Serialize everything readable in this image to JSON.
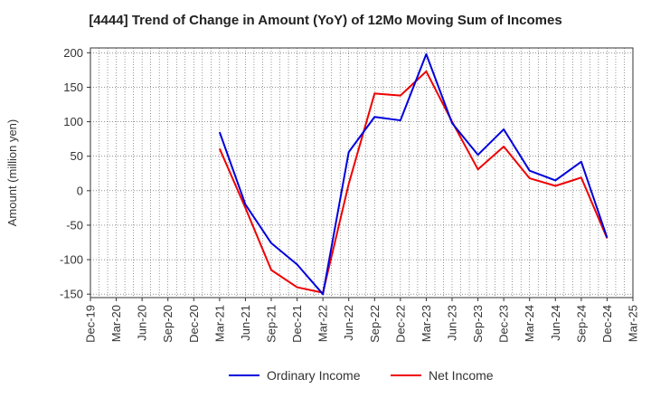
{
  "chart_data": {
    "type": "line",
    "title": "[4444]  Trend of Change in Amount (YoY) of 12Mo Moving Sum of Incomes",
    "xlabel": "",
    "ylabel": "Amount (million yen)",
    "ylim": [
      -155,
      207
    ],
    "yticks": [
      200,
      150,
      100,
      50,
      0,
      -50,
      -100,
      -150
    ],
    "ytick_labels": [
      "200",
      "150",
      "100",
      "50",
      "0",
      "-50",
      "-100",
      "-150"
    ],
    "categories": [
      "Dec-19",
      "Mar-20",
      "Jun-20",
      "Sep-20",
      "Dec-20",
      "Mar-21",
      "Jun-21",
      "Sep-21",
      "Dec-21",
      "Mar-22",
      "Jun-22",
      "Sep-22",
      "Dec-22",
      "Mar-23",
      "Jun-23",
      "Sep-23",
      "Dec-23",
      "Mar-24",
      "Jun-24",
      "Sep-24",
      "Dec-24",
      "Mar-25"
    ],
    "grid": true,
    "legend": "bottom-center",
    "series": [
      {
        "name": "Ordinary Income",
        "color": "#0000dd",
        "values": [
          null,
          null,
          null,
          null,
          null,
          85,
          -20,
          -76,
          -107,
          -150,
          56,
          107,
          102,
          198,
          98,
          52,
          89,
          29,
          15,
          42,
          -68,
          null
        ]
      },
      {
        "name": "Net Income",
        "color": "#ee0000",
        "values": [
          null,
          null,
          null,
          null,
          null,
          61,
          -25,
          -115,
          -140,
          -148,
          10,
          141,
          138,
          173,
          100,
          31,
          64,
          18,
          7,
          19,
          -69,
          null
        ]
      }
    ]
  }
}
